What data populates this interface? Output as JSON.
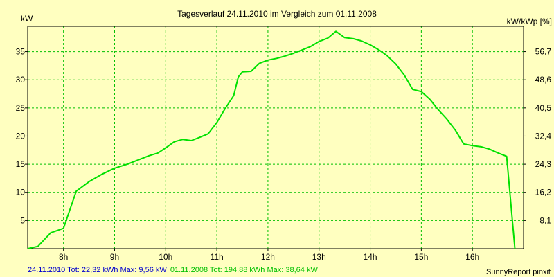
{
  "colors": {
    "background": "#FFFFC0",
    "grid": "#00C000",
    "series_2008": "#00E000",
    "series_2010": "#0000CC",
    "footer_blue": "#0000CC",
    "footer_green": "#00C000"
  },
  "chart_data": {
    "type": "line",
    "title": "Tagesverlauf 24.11.2010 im Vergleich zum 01.11.2008",
    "ylabel_left": "kW",
    "ylabel_right": "kW/kWp [%]",
    "xlim": [
      7.3,
      17.0
    ],
    "ylim": [
      0,
      39.5
    ],
    "x_ticks": [
      {
        "value": 8,
        "label": "8h"
      },
      {
        "value": 9,
        "label": "9h"
      },
      {
        "value": 10,
        "label": "10h"
      },
      {
        "value": 11,
        "label": "11h"
      },
      {
        "value": 12,
        "label": "12h"
      },
      {
        "value": 13,
        "label": "13h"
      },
      {
        "value": 14,
        "label": "14h"
      },
      {
        "value": 15,
        "label": "15h"
      },
      {
        "value": 16,
        "label": "16h"
      }
    ],
    "y_ticks_left": [
      {
        "value": 5,
        "label": "5"
      },
      {
        "value": 10,
        "label": "10"
      },
      {
        "value": 15,
        "label": "15"
      },
      {
        "value": 20,
        "label": "20"
      },
      {
        "value": 25,
        "label": "25"
      },
      {
        "value": 30,
        "label": "30"
      },
      {
        "value": 35,
        "label": "35"
      }
    ],
    "y_ticks_right": [
      {
        "value": 5,
        "label": "8,1"
      },
      {
        "value": 10,
        "label": "16,2"
      },
      {
        "value": 15,
        "label": "24,3"
      },
      {
        "value": 20,
        "label": "32,4"
      },
      {
        "value": 25,
        "label": "40,5"
      },
      {
        "value": 30,
        "label": "48,6"
      },
      {
        "value": 35,
        "label": "56,7"
      }
    ],
    "grid": true,
    "series": [
      {
        "key": "series_2008",
        "x": [
          7.3,
          7.5,
          7.75,
          8.0,
          8.25,
          8.5,
          8.75,
          9.0,
          9.25,
          9.5,
          9.67,
          9.85,
          10.0,
          10.17,
          10.33,
          10.5,
          10.67,
          10.83,
          11.0,
          11.17,
          11.33,
          11.42,
          11.5,
          11.67,
          11.83,
          12.0,
          12.17,
          12.33,
          12.5,
          12.67,
          12.83,
          13.0,
          13.17,
          13.33,
          13.5,
          13.67,
          13.83,
          14.0,
          14.17,
          14.33,
          14.5,
          14.67,
          14.83,
          15.0,
          15.17,
          15.33,
          15.5,
          15.67,
          15.83,
          16.0,
          16.17,
          16.33,
          16.5,
          16.67,
          16.83
        ],
        "y": [
          0.0,
          0.4,
          2.8,
          3.6,
          10.2,
          11.9,
          13.2,
          14.3,
          15.0,
          15.9,
          16.5,
          17.0,
          17.9,
          19.0,
          19.4,
          19.2,
          19.8,
          20.4,
          22.4,
          25.0,
          27.2,
          30.5,
          31.4,
          31.5,
          32.9,
          33.5,
          33.8,
          34.2,
          34.7,
          35.3,
          35.9,
          36.8,
          37.4,
          38.6,
          37.5,
          37.3,
          36.9,
          36.2,
          35.3,
          34.3,
          32.8,
          30.8,
          28.3,
          27.9,
          26.5,
          24.7,
          23.0,
          21.0,
          18.6,
          18.3,
          18.1,
          17.7,
          17.0,
          16.4,
          0.0
        ],
        "_note": ""
      }
    ]
  },
  "footer": {
    "left_2010": "24.11.2010 Tot: 22,32 kWh Max: 9,56 kW",
    "left_2008": "01.11.2008 Tot: 194,88 kWh Max: 38,64 kW",
    "right": "SunnyReport pinxit"
  }
}
